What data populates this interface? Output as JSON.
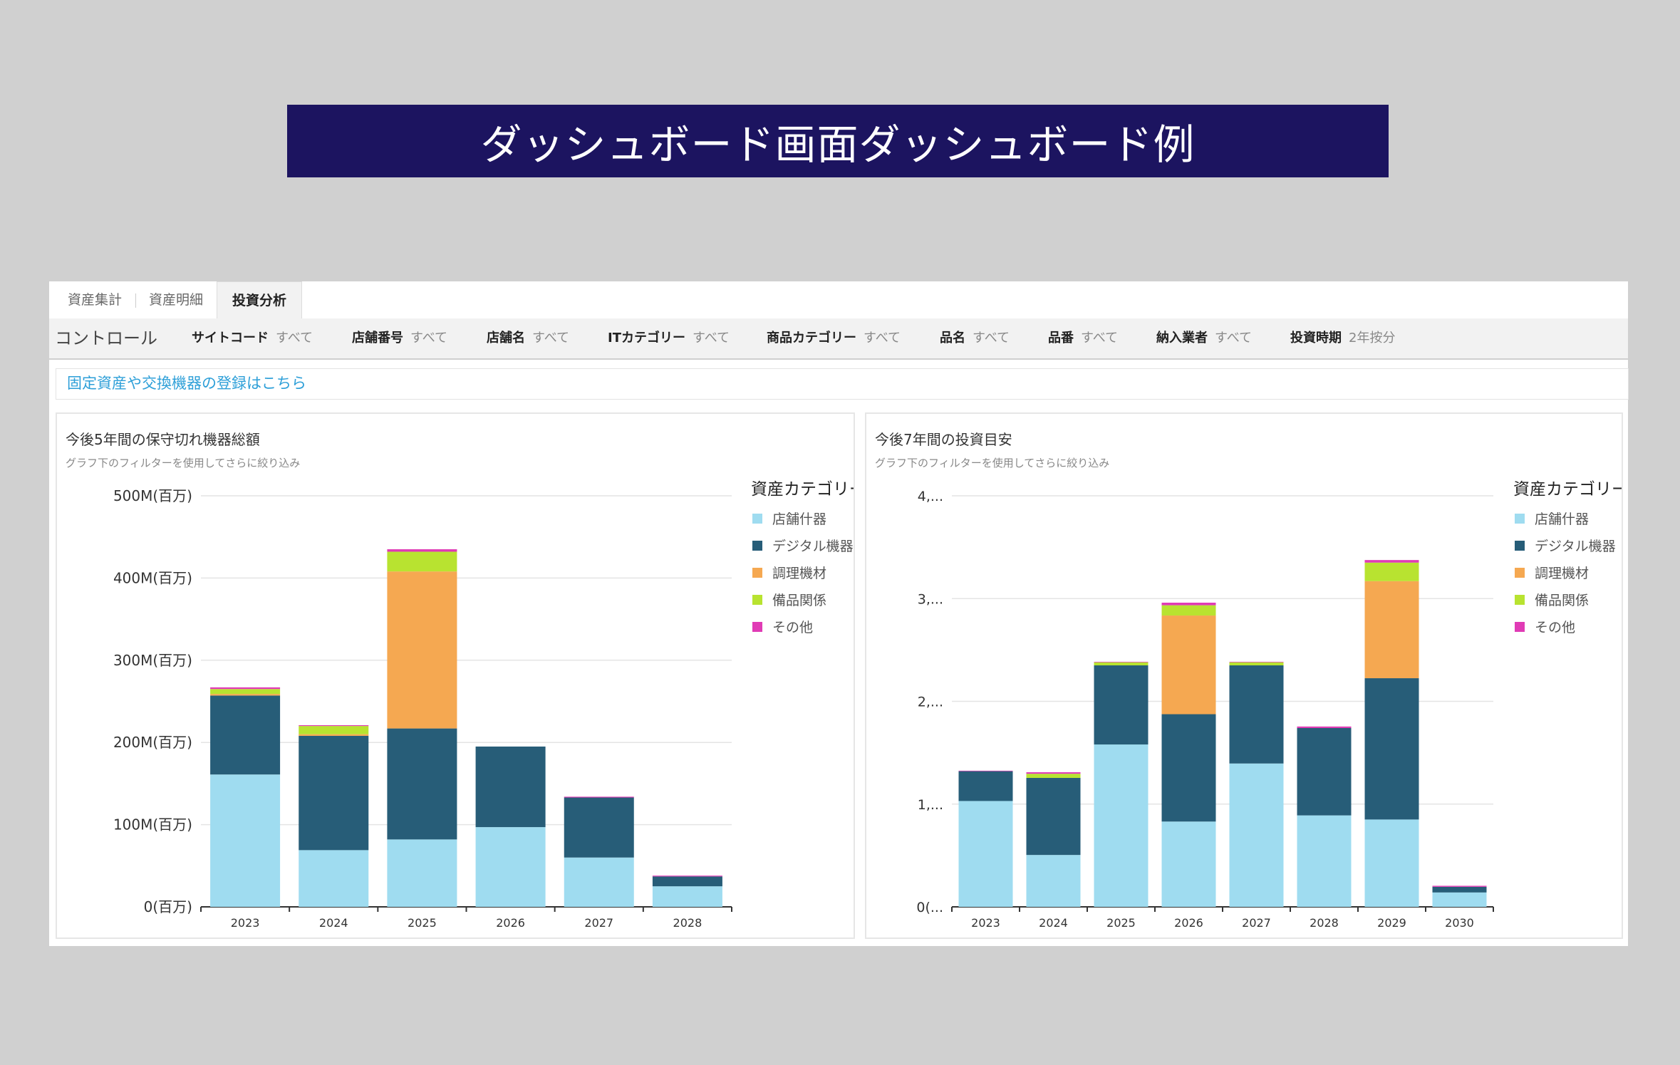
{
  "banner": {
    "title": "ダッシュボード画面ダッシュボード例"
  },
  "tabs": [
    {
      "label": "資産集計",
      "active": false
    },
    {
      "label": "資産明細",
      "active": false
    },
    {
      "label": "投資分析",
      "active": true
    }
  ],
  "controls": {
    "title": "コントロール",
    "items": [
      {
        "label": "サイトコード",
        "value": "すべて"
      },
      {
        "label": "店舗番号",
        "value": "すべて"
      },
      {
        "label": "店舗名",
        "value": "すべて"
      },
      {
        "label": "ITカテゴリー",
        "value": "すべて"
      },
      {
        "label": "商品カテゴリー",
        "value": "すべて"
      },
      {
        "label": "品名",
        "value": "すべて"
      },
      {
        "label": "品番",
        "value": "すべて"
      },
      {
        "label": "納入業者",
        "value": "すべて"
      },
      {
        "label": "投資時期",
        "value": "2年按分"
      }
    ]
  },
  "link": {
    "label": "固定資産や交換機器の登録はこちら"
  },
  "colors": {
    "店舗什器": "#9fdcf0",
    "デジタル機器": "#275d78",
    "調理機材": "#f5a851",
    "備品関係": "#b8e330",
    "その他": "#e03bb5"
  },
  "chart_data": [
    {
      "type": "bar",
      "stacked": true,
      "title": "今後5年間の保守切れ機器総額",
      "subtitle": "グラフ下のフィルターを使用してさらに絞り込み",
      "legend_title": "資産カテゴリー",
      "legend_position": "right",
      "categories": [
        "2023",
        "2024",
        "2025",
        "2026",
        "2027",
        "2028"
      ],
      "yticks": [
        "0(百万)",
        "100M(百万)",
        "200M(百万)",
        "300M(百万)",
        "400M(百万)",
        "500M(百万)"
      ],
      "ylim": [
        0,
        500
      ],
      "series": [
        {
          "name": "店舗什器",
          "values": [
            161,
            69,
            82,
            97,
            60,
            25
          ]
        },
        {
          "name": "デジタル機器",
          "values": [
            96,
            139,
            135,
            98,
            73,
            12
          ]
        },
        {
          "name": "調理機材",
          "values": [
            2,
            2,
            191,
            0,
            0,
            0
          ]
        },
        {
          "name": "備品関係",
          "values": [
            6,
            10,
            24,
            0,
            0,
            0
          ]
        },
        {
          "name": "その他",
          "values": [
            2,
            1,
            3,
            0,
            1,
            1
          ]
        }
      ]
    },
    {
      "type": "bar",
      "stacked": true,
      "title": "今後7年間の投資目安",
      "subtitle": "グラフ下のフィルターを使用してさらに絞り込み",
      "legend_title": "資産カテゴリー",
      "legend_position": "right",
      "categories": [
        "2023",
        "2024",
        "2025",
        "2026",
        "2027",
        "2028",
        "2029",
        "2030"
      ],
      "yticks": [
        "0(...",
        "1,...",
        "2,...",
        "3,...",
        "4,..."
      ],
      "ylim": [
        0,
        4000
      ],
      "series": [
        {
          "name": "店舗什器",
          "values": [
            1030,
            505,
            1580,
            830,
            1395,
            890,
            850,
            140
          ]
        },
        {
          "name": "デジタル機器",
          "values": [
            290,
            750,
            770,
            1045,
            955,
            850,
            1375,
            55
          ]
        },
        {
          "name": "調理機材",
          "values": [
            0,
            0,
            0,
            960,
            0,
            0,
            945,
            0
          ]
        },
        {
          "name": "備品関係",
          "values": [
            0,
            40,
            30,
            100,
            30,
            0,
            180,
            0
          ]
        },
        {
          "name": "その他",
          "values": [
            5,
            15,
            5,
            25,
            5,
            15,
            25,
            10
          ]
        }
      ]
    }
  ]
}
